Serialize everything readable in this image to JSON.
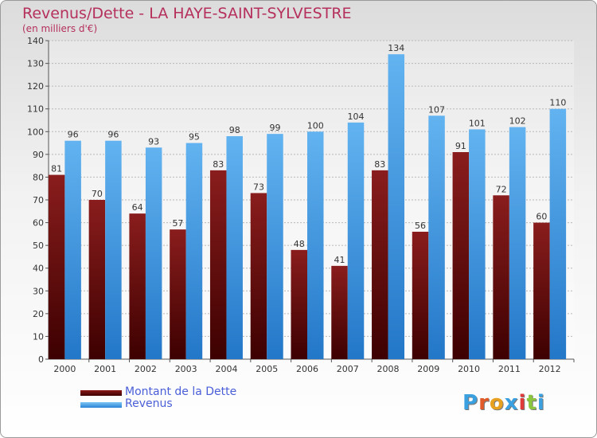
{
  "header": {
    "title": "Revenus/Dette - LA HAYE-SAINT-SYLVESTRE",
    "subtitle": "(en milliers d'€)"
  },
  "colors": {
    "title": "#b5305a",
    "debt": "#6b0c0c",
    "revenue": "#4aa3e8",
    "legend_text": "#4a5ed8"
  },
  "logo": {
    "text": "Proxiti",
    "letter_colors": [
      "#3aa0e0",
      "#e05a2a",
      "#e8a020",
      "#3aa0e0",
      "#e03a3a",
      "#8cc63f",
      "#3aa0e0"
    ]
  },
  "chart_data": {
    "type": "bar",
    "title": "Revenus/Dette - LA HAYE-SAINT-SYLVESTRE",
    "subtitle": "(en milliers d'€)",
    "xlabel": "",
    "ylabel": "",
    "categories": [
      "2000",
      "2001",
      "2002",
      "2003",
      "2004",
      "2005",
      "2006",
      "2007",
      "2008",
      "2009",
      "2010",
      "2011",
      "2012"
    ],
    "series": [
      {
        "name": "Montant de la Dette",
        "color": "#6b0c0c",
        "values": [
          81,
          70,
          64,
          57,
          83,
          73,
          48,
          41,
          83,
          56,
          91,
          72,
          60
        ]
      },
      {
        "name": "Revenus",
        "color": "#4aa3e8",
        "values": [
          96,
          96,
          93,
          95,
          98,
          99,
          100,
          104,
          134,
          107,
          101,
          102,
          110
        ]
      }
    ],
    "ylim": [
      0,
      140
    ],
    "yticks": [
      0,
      10,
      20,
      30,
      40,
      50,
      60,
      70,
      80,
      90,
      100,
      110,
      120,
      130,
      140
    ],
    "grid": true,
    "legend": "bottom-left",
    "data_labels": true
  }
}
